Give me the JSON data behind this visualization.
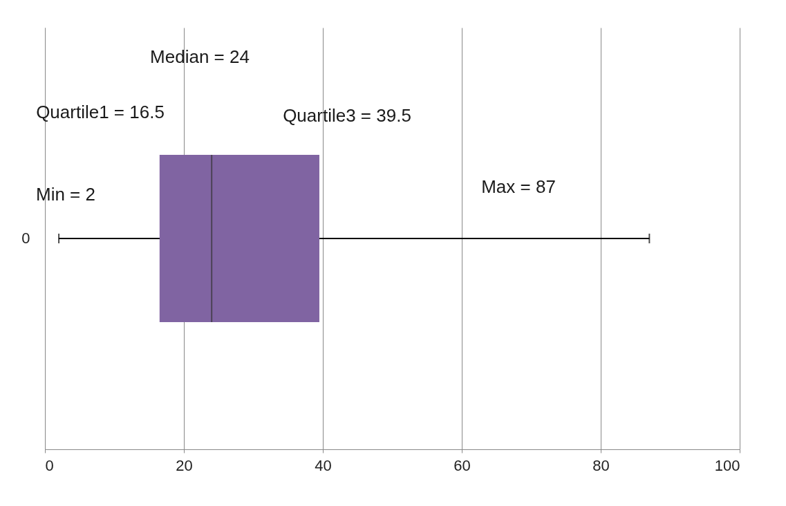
{
  "chart_data": {
    "type": "box",
    "orientation": "horizontal",
    "categories": [
      "0"
    ],
    "series": [
      {
        "color": "#8064a2",
        "boxes": [
          {
            "low": 2,
            "q1": 16.5,
            "median": 24,
            "q3": 39.5,
            "high": 87
          }
        ]
      }
    ],
    "xlim": [
      0,
      100
    ],
    "xticks": [
      0,
      20,
      40,
      60,
      80,
      100
    ],
    "grid": "x",
    "annotations": [
      "Median = 24",
      "Quartile1 = 16.5",
      "Quartile3 = 39.5",
      "Min = 2",
      "Max = 87"
    ]
  }
}
